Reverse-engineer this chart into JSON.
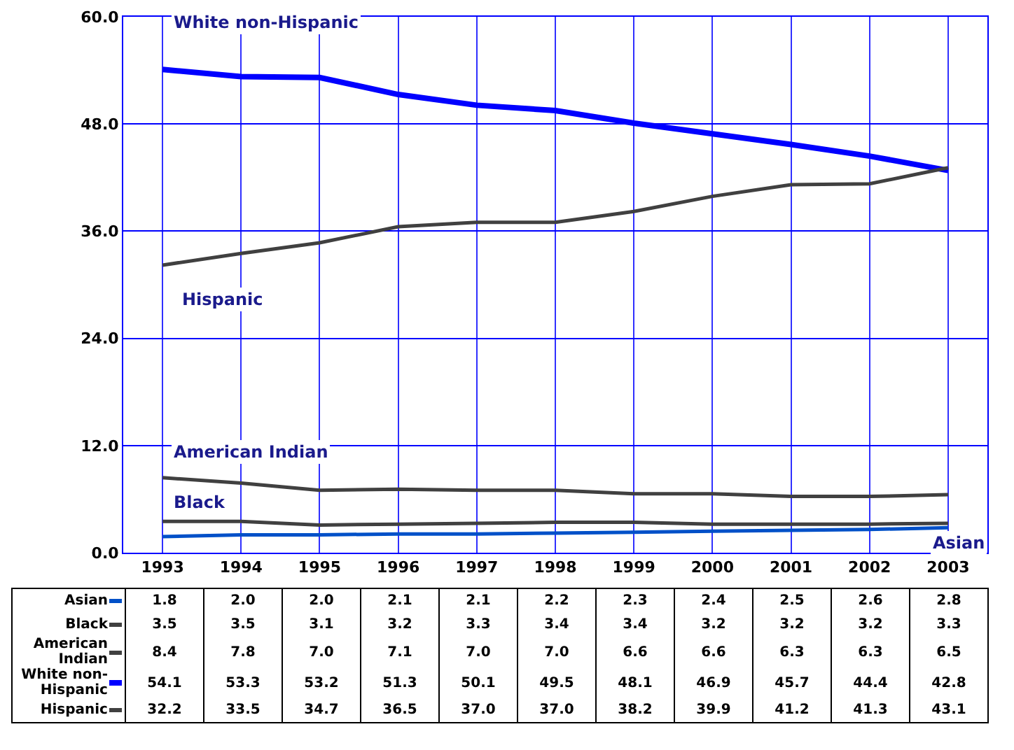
{
  "chart_data": {
    "type": "line",
    "categories": [
      "1993",
      "1994",
      "1995",
      "1996",
      "1997",
      "1998",
      "1999",
      "2000",
      "2001",
      "2002",
      "2003"
    ],
    "series": [
      {
        "name": "Asian",
        "color": "#0050c8",
        "values": [
          1.8,
          2.0,
          2.0,
          2.1,
          2.1,
          2.2,
          2.3,
          2.4,
          2.5,
          2.6,
          2.8
        ],
        "value_labels": [
          "1.8",
          "2.0",
          "2.0",
          "2.1",
          "2.1",
          "2.2",
          "2.3",
          "2.4",
          "2.5",
          "2.6",
          "2.8"
        ]
      },
      {
        "name": "Black",
        "color": "#404040",
        "values": [
          3.5,
          3.5,
          3.1,
          3.2,
          3.3,
          3.4,
          3.4,
          3.2,
          3.2,
          3.2,
          3.3
        ],
        "value_labels": [
          "3.5",
          "3.5",
          "3.1",
          "3.2",
          "3.3",
          "3.4",
          "3.4",
          "3.2",
          "3.2",
          "3.2",
          "3.3"
        ]
      },
      {
        "name": "American Indian",
        "color": "#404040",
        "values": [
          8.4,
          7.8,
          7.0,
          7.1,
          7.0,
          7.0,
          6.6,
          6.6,
          6.3,
          6.3,
          6.5
        ],
        "value_labels": [
          "8.4",
          "7.8",
          "7.0",
          "7.1",
          "7.0",
          "7.0",
          "6.6",
          "6.6",
          "6.3",
          "6.3",
          "6.5"
        ]
      },
      {
        "name": "White non-Hispanic",
        "color": "#0000ff",
        "values": [
          54.1,
          53.3,
          53.2,
          51.3,
          50.1,
          49.5,
          48.1,
          46.9,
          45.7,
          44.4,
          42.8
        ],
        "value_labels": [
          "54.1",
          "53.3",
          "53.2",
          "51.3",
          "50.1",
          "49.5",
          "48.1",
          "46.9",
          "45.7",
          "44.4",
          "42.8"
        ]
      },
      {
        "name": "Hispanic",
        "color": "#404040",
        "values": [
          32.2,
          33.5,
          34.7,
          36.5,
          37.0,
          37.0,
          38.2,
          39.9,
          41.2,
          41.3,
          43.1
        ],
        "value_labels": [
          "32.2",
          "33.5",
          "34.7",
          "36.5",
          "37.0",
          "37.0",
          "38.2",
          "39.9",
          "41.2",
          "41.3",
          "43.1"
        ]
      }
    ],
    "annotations": [
      "White non-Hispanic",
      "Hispanic",
      "American Indian",
      "Black",
      "Asian"
    ],
    "legend": "bottom left",
    "ylim": [
      0,
      60
    ],
    "yticks": [
      {
        "value": 0,
        "label": "0.0"
      },
      {
        "value": 12,
        "label": "12.0"
      },
      {
        "value": 24,
        "label": "24.0"
      },
      {
        "value": 36,
        "label": "36.0"
      },
      {
        "value": 48,
        "label": "48.0"
      },
      {
        "value": 60,
        "label": "60.0"
      }
    ],
    "grid": true
  }
}
